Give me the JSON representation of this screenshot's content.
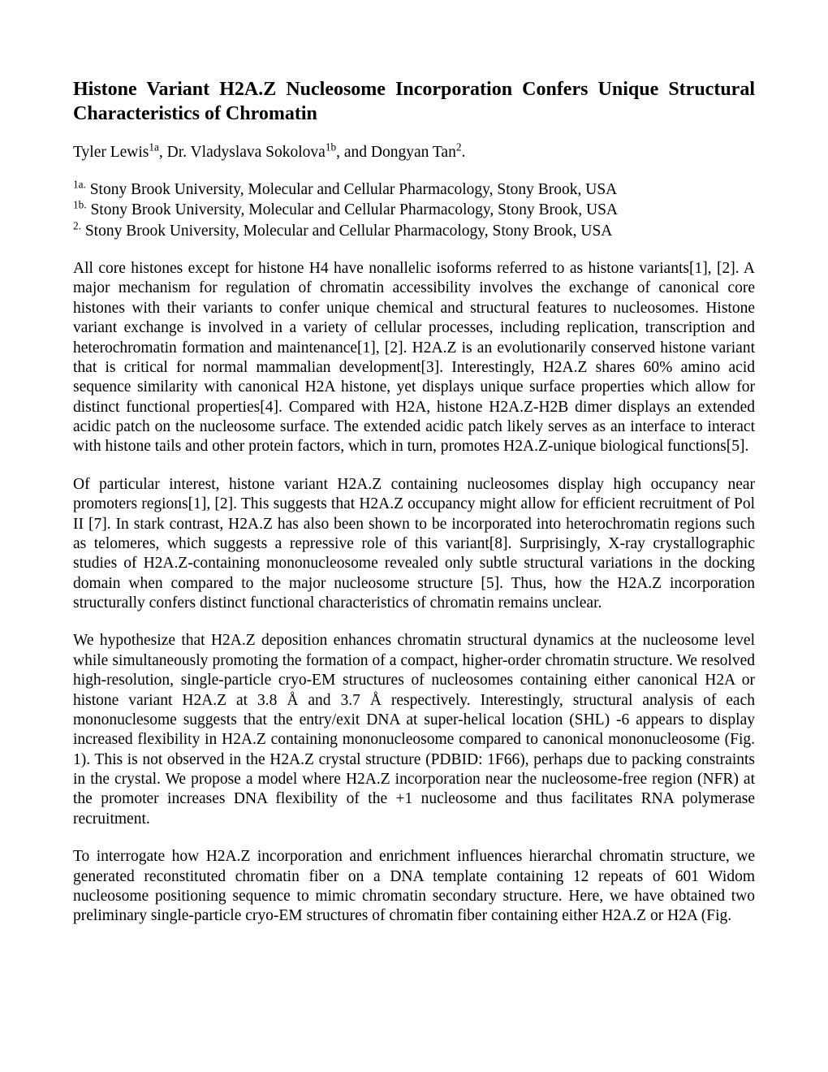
{
  "title": "Histone Variant H2A.Z Nucleosome Incorporation Confers Unique Structural Characteristics of Chromatin",
  "authors": {
    "a1_name": "Tyler Lewis",
    "a1_sup": "1a",
    "sep1": ", ",
    "a2_name": "Dr. Vladyslava Sokolova",
    "a2_sup": "1b",
    "sep2": ", and ",
    "a3_name": "Dongyan Tan",
    "a3_sup": "2",
    "tail": "."
  },
  "affiliations": {
    "l1_sup": "1a.",
    "l1_text": " Stony Brook University, Molecular and Cellular Pharmacology, Stony Brook, USA",
    "l2_sup": "1b.",
    "l2_text": " Stony Brook University, Molecular and Cellular Pharmacology, Stony Brook, USA",
    "l3_sup": "2.",
    "l3_text": " Stony Brook University, Molecular and Cellular Pharmacology, Stony Brook, USA"
  },
  "paragraphs": {
    "p1": "All core histones except for histone H4 have nonallelic isoforms referred to as histone variants[1], [2]. A major mechanism for regulation of chromatin accessibility involves the exchange of canonical core histones with their variants to confer unique chemical and structural features to nucleosomes. Histone variant exchange is involved in a variety of cellular processes, including replication, transcription and heterochromatin formation and maintenance[1], [2]. H2A.Z is an evolutionarily conserved histone variant that is critical for normal mammalian development[3]. Interestingly, H2A.Z shares 60% amino acid sequence similarity with canonical H2A histone, yet displays unique surface properties which allow for distinct functional properties[4]. Compared with H2A, histone H2A.Z-H2B dimer displays an extended acidic patch on the nucleosome surface. The extended acidic patch likely serves as an interface to interact with histone tails and other protein factors, which in turn, promotes H2A.Z-unique biological functions[5].",
    "p2": "Of particular interest, histone variant H2A.Z containing nucleosomes display high occupancy near promoters regions[1], [2]. This suggests that H2A.Z occupancy might allow for efficient recruitment of Pol II [7]. In stark contrast, H2A.Z has also been shown to be incorporated into heterochromatin regions such as telomeres, which suggests a repressive role of this variant[8]. Surprisingly, X-ray crystallographic studies of H2A.Z-containing mononucleosome revealed only subtle structural variations in the docking domain when compared to the major nucleosome structure [5]. Thus, how the H2A.Z incorporation structurally confers distinct functional characteristics of chromatin remains unclear.",
    "p3": "We hypothesize that H2A.Z deposition enhances chromatin structural dynamics at the nucleosome level while simultaneously promoting the formation of a compact, higher-order chromatin structure. We resolved high-resolution, single-particle cryo-EM structures of nucleosomes containing either canonical H2A or histone variant H2A.Z at 3.8 Å and 3.7 Å respectively. Interestingly, structural analysis of each mononuclesome suggests that the entry/exit DNA at super-helical location (SHL) -6 appears to display increased flexibility in H2A.Z containing mononucleosome compared to canonical mononucleosome (Fig. 1). This is not observed in the H2A.Z crystal structure (PDBID: 1F66), perhaps due to packing constraints in the crystal. We propose a model where H2A.Z incorporation near the nucleosome-free region (NFR) at the promoter increases DNA flexibility of the +1 nucleosome and thus facilitates RNA polymerase recruitment.",
    "p4": "To interrogate how H2A.Z incorporation and enrichment influences hierarchal chromatin structure, we generated reconstituted chromatin fiber on a DNA template containing 12 repeats of 601 Widom nucleosome positioning sequence to mimic chromatin secondary structure. Here, we have obtained two preliminary single-particle cryo-EM structures of chromatin fiber containing either H2A.Z or H2A (Fig."
  }
}
